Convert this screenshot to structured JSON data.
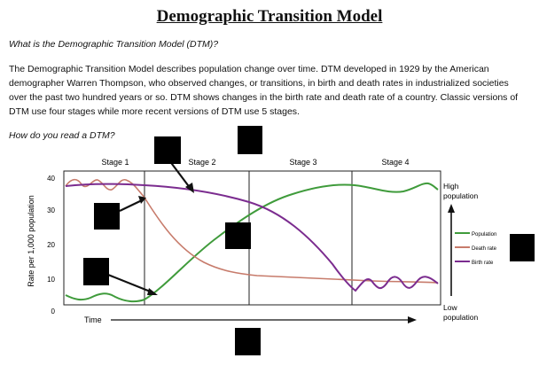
{
  "title": "Demographic Transition Model",
  "question1": "What is the Demographic Transition Model (DTM)?",
  "paragraph": "The Demographic Transition Model describes population change over time. DTM developed in 1929 by the American demographer Warren Thompson, who observed changes, or transitions, in birth and death rates in industrialized societies over the past two hundred years or so. DTM shows changes in the birth rate and death rate of a country. Classic versions of DTM use four stages while more recent versions of DTM use 5 stages.",
  "question2": "How do you read a DTM?",
  "chart_data": {
    "type": "line",
    "ylabel": "Rate per 1,000 population",
    "xlabel": "Time",
    "ylim": [
      0,
      40
    ],
    "yticks": [
      "40",
      "30",
      "20",
      "10",
      "0"
    ],
    "stages": [
      "Stage 1",
      "Stage 2",
      "Stage 3",
      "Stage 4"
    ],
    "legend": {
      "population": "Population",
      "death_rate": "Death rate",
      "birth_rate": "Birth rate"
    },
    "right_axis": {
      "high_line1": "High",
      "high_line2": "population",
      "low_line1": "Low",
      "low_line2": "population"
    },
    "colors": {
      "population": "#3f9b3b",
      "death_rate": "#c77b6b",
      "birth_rate": "#7b2c8f"
    }
  }
}
